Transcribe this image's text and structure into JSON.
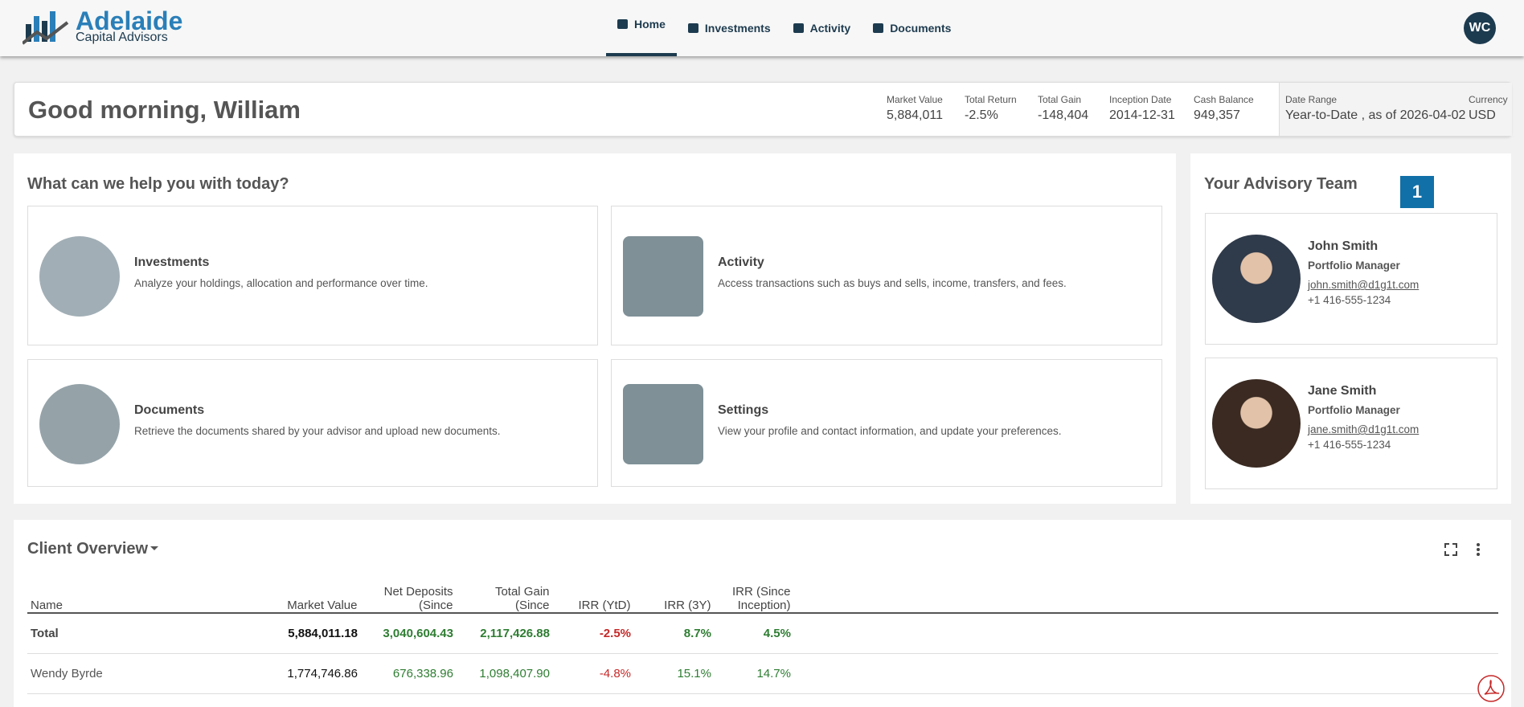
{
  "header": {
    "logo_name": "Adelaide",
    "logo_sub": "Capital Advisors",
    "nav": [
      "Home",
      "Investments",
      "Activity",
      "Documents"
    ],
    "avatar": "WC"
  },
  "summary": {
    "greeting": "Good morning, William",
    "metrics": [
      {
        "label": "Market Value",
        "value": "5,884,011"
      },
      {
        "label": "Total Return",
        "value": "-2.5%"
      },
      {
        "label": "Total Gain",
        "value": "-148,404"
      },
      {
        "label": "Inception Date",
        "value": "2014-12-31"
      },
      {
        "label": "Cash Balance",
        "value": "949,357"
      }
    ],
    "date_range": {
      "label": "Date Range",
      "value": "Year-to-Date , as of 2026-04-02"
    },
    "currency": {
      "label": "Currency",
      "value": "USD"
    }
  },
  "help": {
    "title": "What can we help you with today?",
    "cards": [
      {
        "title": "Investments",
        "desc": "Analyze your holdings, allocation and performance over time."
      },
      {
        "title": "Activity",
        "desc": "Access transactions such as buys and sells, income, transfers, and fees."
      },
      {
        "title": "Documents",
        "desc": "Retrieve the documents shared by your advisor and upload new documents."
      },
      {
        "title": "Settings",
        "desc": "View your profile and contact information, and update your preferences."
      }
    ]
  },
  "team": {
    "title": "Your Advisory Team",
    "badge": "1",
    "members": [
      {
        "name": "John Smith",
        "role": "Portfolio Manager",
        "email": "john.smith@d1g1t.com",
        "phone": "+1 416-555-1234"
      },
      {
        "name": "Jane Smith",
        "role": "Portfolio Manager",
        "email": "jane.smith@d1g1t.com",
        "phone": "+1 416-555-1234"
      }
    ]
  },
  "overview": {
    "title": "Client Overview",
    "columns": [
      "Name",
      "Market Value",
      "Net Deposits (Since",
      "Total Gain (Since",
      "IRR (YtD)",
      "IRR (3Y)",
      "IRR (Since Inception)"
    ],
    "rows": [
      [
        "Total",
        "5,884,011.18",
        "3,040,604.43",
        "2,117,426.88",
        "-2.5%",
        "8.7%",
        "4.5%"
      ],
      [
        "Wendy Byrde",
        "1,774,746.86",
        "676,338.96",
        "1,098,407.90",
        "-4.8%",
        "15.1%",
        "14.7%"
      ]
    ]
  }
}
